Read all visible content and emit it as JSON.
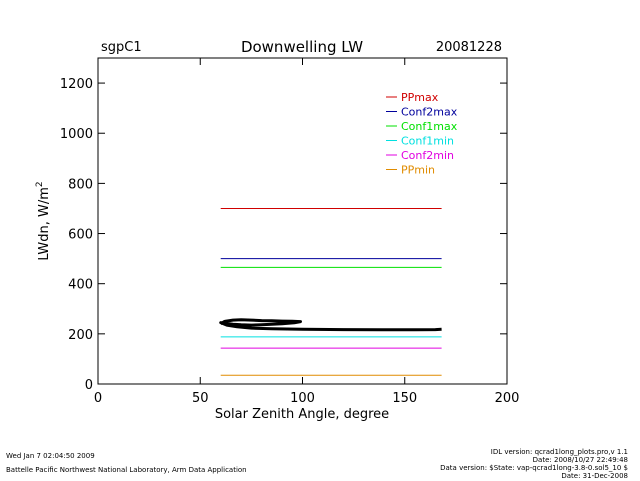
{
  "header": {
    "site": "sgpC1",
    "title": "Downwelling LW",
    "date": "20081228"
  },
  "chart_data": {
    "type": "line",
    "xlabel": "Solar Zenith Angle, degree",
    "ylabel_main": "LWdn, W/m",
    "ylabel_sup": "2",
    "xlim": [
      0,
      200
    ],
    "ylim": [
      0,
      1300
    ],
    "xticks": [
      0,
      50,
      100,
      150,
      200
    ],
    "yticks": [
      0,
      200,
      400,
      600,
      800,
      1000,
      1200
    ],
    "legend_position": "top-right inside",
    "series": [
      {
        "name": "PPmax",
        "color": "#d00000",
        "x": [
          60,
          168
        ],
        "y": [
          700,
          700
        ]
      },
      {
        "name": "Conf2max",
        "color": "#00009c",
        "x": [
          60,
          168
        ],
        "y": [
          500,
          500
        ]
      },
      {
        "name": "Conf1max",
        "color": "#00e000",
        "x": [
          60,
          168
        ],
        "y": [
          465,
          465
        ]
      },
      {
        "name": "Conf1min",
        "color": "#00e0e0",
        "x": [
          60,
          168
        ],
        "y": [
          188,
          188
        ]
      },
      {
        "name": "Conf2min",
        "color": "#e000e0",
        "x": [
          60,
          168
        ],
        "y": [
          143,
          143
        ]
      },
      {
        "name": "PPmin",
        "color": "#e08c00",
        "x": [
          60,
          168
        ],
        "y": [
          35,
          35
        ]
      }
    ],
    "observed": {
      "color": "#000000",
      "x": [
        60,
        62,
        66,
        70,
        75,
        80,
        85,
        90,
        95,
        99,
        96,
        90,
        85,
        80,
        75,
        70,
        66,
        62,
        60,
        63,
        68,
        75,
        85,
        100,
        120,
        140,
        155,
        165,
        168
      ],
      "y": [
        240,
        250,
        255,
        256,
        255,
        253,
        252,
        251,
        250,
        249,
        244,
        240,
        238,
        236,
        235,
        236,
        238,
        242,
        245,
        235,
        228,
        223,
        220,
        218,
        217,
        216,
        216,
        217,
        218
      ]
    }
  },
  "footer": {
    "left_line1": "Wed Jan  7 02:04:50 2009",
    "left_line2": "Battelle Pacific Northwest National Laboratory, Arm Data Application",
    "right_line1": "IDL version: qcrad1long_plots.pro,v 1.1",
    "right_line2": "Date: 2008/10/27 22:49:48",
    "right_line3": "Data version: $State: vap-qcrad1long-3.8-0.sol5_10 $",
    "right_line4": "Date: 31-Dec-2008"
  }
}
